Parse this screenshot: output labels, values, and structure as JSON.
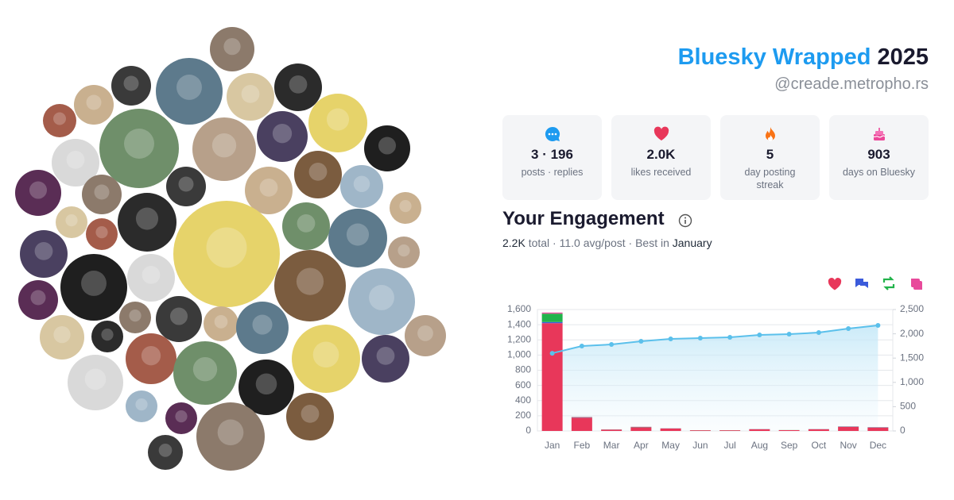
{
  "header": {
    "brand": "Bluesky Wrapped",
    "year": "2025",
    "handle": "@creade.metropho.rs"
  },
  "stats": [
    {
      "value": "3 · 196",
      "label": "posts · replies"
    },
    {
      "value": "2.0K",
      "label": "likes received"
    },
    {
      "value": "5",
      "label": "day posting streak"
    },
    {
      "value": "903",
      "label": "days on Bluesky"
    }
  ],
  "engagement": {
    "title": "Your Engagement",
    "summary": [
      {
        "text": "2.2K",
        "strong": true
      },
      {
        "text": " total · 11.0 avg/post · Best in ",
        "strong": false
      },
      {
        "text": "January",
        "strong": true
      }
    ]
  },
  "chart_data": {
    "type": "bar",
    "categories": [
      "Jan",
      "Feb",
      "Mar",
      "Apr",
      "May",
      "Jun",
      "Jul",
      "Aug",
      "Sep",
      "Oct",
      "Nov",
      "Dec"
    ],
    "series": [
      {
        "color": "#e8375a",
        "values": [
          1420,
          175,
          18,
          48,
          32,
          9,
          9,
          22,
          11,
          22,
          55,
          45
        ]
      },
      {
        "color": "#3b5bdb",
        "values": [
          15,
          2,
          1,
          2,
          1,
          0,
          0,
          1,
          0,
          1,
          2,
          2
        ]
      },
      {
        "color": "#22b34b",
        "values": [
          110,
          4,
          1,
          3,
          1,
          1,
          1,
          1,
          1,
          1,
          2,
          2
        ]
      },
      {
        "color": "#e84a9b",
        "values": [
          15,
          4,
          0,
          2,
          1,
          0,
          0,
          1,
          0,
          1,
          1,
          1
        ]
      },
      {
        "type": "line",
        "axis": "y2",
        "color": "#5bc0eb",
        "values": [
          1600,
          1748,
          1781,
          1846,
          1895,
          1912,
          1928,
          1977,
          1993,
          2026,
          2108,
          2173
        ]
      }
    ],
    "ylim": [
      0,
      1600
    ],
    "yticks": [
      0,
      200,
      400,
      600,
      800,
      {
        "value": 1000,
        "label": "1,000"
      },
      {
        "value": 1200,
        "label": "1,200"
      },
      {
        "value": 1400,
        "label": "1,400"
      },
      {
        "value": 1600,
        "label": "1,600"
      }
    ],
    "y2lim": [
      0,
      2500
    ],
    "y2ticks": [
      0,
      500,
      {
        "value": 1000,
        "label": "1,000"
      },
      {
        "value": 1500,
        "label": "1,500"
      },
      {
        "value": 2000,
        "label": "2,000"
      },
      {
        "value": 2500,
        "label": "2,500"
      }
    ],
    "grid": true
  }
}
